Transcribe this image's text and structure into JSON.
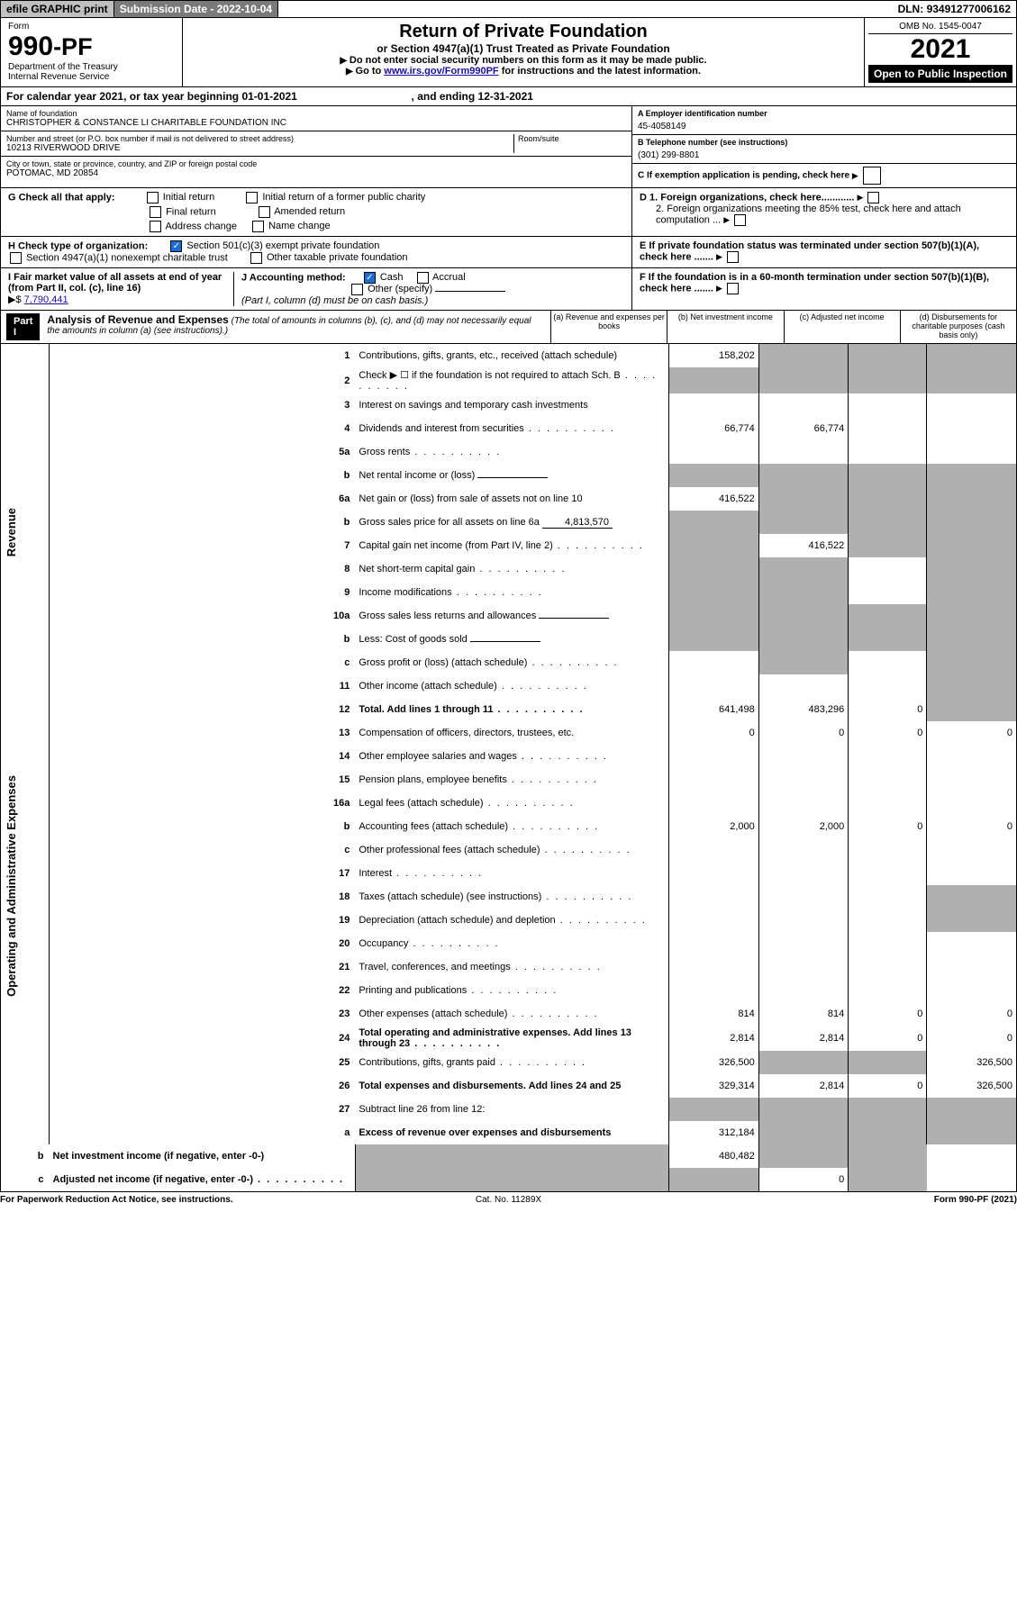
{
  "top": {
    "efile": "efile GRAPHIC print",
    "subdate_lbl": "Submission Date - ",
    "subdate": "2022-10-04",
    "dln_lbl": "DLN: ",
    "dln": "93491277006162"
  },
  "head": {
    "form": "Form",
    "num": "990",
    "pf": "-PF",
    "dept": "Department of the Treasury",
    "irs": "Internal Revenue Service",
    "title": "Return of Private Foundation",
    "sub": "or Section 4947(a)(1) Trust Treated as Private Foundation",
    "arrow1": "Do not enter social security numbers on this form as it may be made public.",
    "arrow2_pre": "Go to ",
    "arrow2_link": "www.irs.gov/Form990PF",
    "arrow2_post": " for instructions and the latest information.",
    "omb": "OMB No. 1545-0047",
    "year": "2021",
    "open": "Open to Public Inspection"
  },
  "cal": {
    "pre": "For calendar year 2021, or tax year beginning ",
    "begin": "01-01-2021",
    "mid": ", and ending ",
    "end": "12-31-2021"
  },
  "name": {
    "lbl": "Name of foundation",
    "val": "CHRISTOPHER & CONSTANCE LI CHARITABLE FOUNDATION INC"
  },
  "addr": {
    "lbl": "Number and street (or P.O. box number if mail is not delivered to street address)",
    "val": "10213 RIVERWOOD DRIVE",
    "room": "Room/suite"
  },
  "city": {
    "lbl": "City or town, state or province, country, and ZIP or foreign postal code",
    "val": "POTOMAC, MD  20854"
  },
  "a": {
    "lbl": "A Employer identification number",
    "val": "45-4058149"
  },
  "b": {
    "lbl": "B Telephone number (see instructions)",
    "val": "(301) 299-8801"
  },
  "c": {
    "lbl": "C If exemption application is pending, check here"
  },
  "d1": "D 1. Foreign organizations, check here............",
  "d2": "2. Foreign organizations meeting the 85% test, check here and attach computation ...",
  "e": "E  If private foundation status was terminated under section 507(b)(1)(A), check here .......",
  "f": "F  If the foundation is in a 60-month termination under section 507(b)(1)(B), check here .......",
  "g": {
    "lbl": "G Check all that apply:",
    "c1": "Initial return",
    "c2": "Final return",
    "c3": "Address change",
    "c4": "Initial return of a former public charity",
    "c5": "Amended return",
    "c6": "Name change"
  },
  "h": {
    "lbl": "H Check type of organization:",
    "c1": "Section 501(c)(3) exempt private foundation",
    "c2": "Section 4947(a)(1) nonexempt charitable trust",
    "c3": "Other taxable private foundation"
  },
  "i": {
    "lbl": "I Fair market value of all assets at end of year (from Part II, col. (c), line 16) ",
    "pre": "▶$",
    "val": "7,790,441"
  },
  "j": {
    "lbl": "J Accounting method:",
    "c1": "Cash",
    "c2": "Accrual",
    "c3": "Other (specify)",
    "note": "(Part I, column (d) must be on cash basis.)"
  },
  "part1": {
    "bar": "Part I",
    "title": "Analysis of Revenue and Expenses",
    "desc": "(The total of amounts in columns (b), (c), and (d) may not necessarily equal the amounts in column (a) (see instructions).)",
    "ca": "(a)  Revenue and expenses per books",
    "cb": "(b)  Net investment income",
    "cc": "(c)  Adjusted net income",
    "cd": "(d)  Disbursements for charitable purposes (cash basis only)"
  },
  "sec": {
    "rev": "Revenue",
    "exp": "Operating and Administrative Expenses"
  },
  "lines": [
    {
      "n": "1",
      "d": "Contributions, gifts, grants, etc., received (attach schedule)",
      "a": "158,202",
      "shade_bcd": true
    },
    {
      "n": "2",
      "d": "Check ▶ ☐ if the foundation is not required to attach Sch. B",
      "dots": true,
      "shade_bcd": true,
      "shade_a": true
    },
    {
      "n": "3",
      "d": "Interest on savings and temporary cash investments"
    },
    {
      "n": "4",
      "d": "Dividends and interest from securities",
      "dots": true,
      "a": "66,774",
      "b": "66,774"
    },
    {
      "n": "5a",
      "d": "Gross rents",
      "dots": true
    },
    {
      "n": "b",
      "d": "Net rental income or (loss)",
      "sub": true,
      "shade_all": true
    },
    {
      "n": "6a",
      "d": "Net gain or (loss) from sale of assets not on line 10",
      "a": "416,522",
      "shade_bcd": true
    },
    {
      "n": "b",
      "d": "Gross sales price for all assets on line 6a",
      "subval": "4,813,570",
      "shade_all": true
    },
    {
      "n": "7",
      "d": "Capital gain net income (from Part IV, line 2)",
      "dots": true,
      "b": "416,522",
      "shade_a": true,
      "shade_cd": true
    },
    {
      "n": "8",
      "d": "Net short-term capital gain",
      "dots": true,
      "shade_ab": true,
      "shade_d": true
    },
    {
      "n": "9",
      "d": "Income modifications",
      "dots": true,
      "shade_ab": true,
      "shade_d": true
    },
    {
      "n": "10a",
      "d": "Gross sales less returns and allowances",
      "sub": true,
      "shade_all": true
    },
    {
      "n": "b",
      "d": "Less: Cost of goods sold",
      "dots": true,
      "sub": true,
      "shade_all": true
    },
    {
      "n": "c",
      "d": "Gross profit or (loss) (attach schedule)",
      "dots": true,
      "shade_bd": true
    },
    {
      "n": "11",
      "d": "Other income (attach schedule)",
      "dots": true,
      "shade_d": true
    },
    {
      "n": "12",
      "d": "Total. Add lines 1 through 11",
      "dots": true,
      "bold": true,
      "a": "641,498",
      "b": "483,296",
      "c": "0",
      "shade_d": true
    },
    {
      "n": "13",
      "d": "Compensation of officers, directors, trustees, etc.",
      "a": "0",
      "b": "0",
      "c": "0",
      "dv": "0"
    },
    {
      "n": "14",
      "d": "Other employee salaries and wages",
      "dots": true
    },
    {
      "n": "15",
      "d": "Pension plans, employee benefits",
      "dots": true
    },
    {
      "n": "16a",
      "d": "Legal fees (attach schedule)",
      "dots": true
    },
    {
      "n": "b",
      "d": "Accounting fees (attach schedule)",
      "dots": true,
      "a": "2,000",
      "b": "2,000",
      "c": "0",
      "dv": "0"
    },
    {
      "n": "c",
      "d": "Other professional fees (attach schedule)",
      "dots": true
    },
    {
      "n": "17",
      "d": "Interest",
      "dots": true
    },
    {
      "n": "18",
      "d": "Taxes (attach schedule) (see instructions)",
      "dots": true,
      "shade_d": true
    },
    {
      "n": "19",
      "d": "Depreciation (attach schedule) and depletion",
      "dots": true,
      "shade_d": true
    },
    {
      "n": "20",
      "d": "Occupancy",
      "dots": true
    },
    {
      "n": "21",
      "d": "Travel, conferences, and meetings",
      "dots": true
    },
    {
      "n": "22",
      "d": "Printing and publications",
      "dots": true
    },
    {
      "n": "23",
      "d": "Other expenses (attach schedule)",
      "dots": true,
      "a": "814",
      "b": "814",
      "c": "0",
      "dv": "0"
    },
    {
      "n": "24",
      "d": "Total operating and administrative expenses. Add lines 13 through 23",
      "dots": true,
      "bold": true,
      "a": "2,814",
      "b": "2,814",
      "c": "0",
      "dv": "0"
    },
    {
      "n": "25",
      "d": "Contributions, gifts, grants paid",
      "dots": true,
      "a": "326,500",
      "shade_bc": true,
      "dv": "326,500"
    },
    {
      "n": "26",
      "d": "Total expenses and disbursements. Add lines 24 and 25",
      "bold": true,
      "a": "329,314",
      "b": "2,814",
      "c": "0",
      "dv": "326,500"
    },
    {
      "n": "27",
      "d": "Subtract line 26 from line 12:",
      "shade_all": true
    },
    {
      "n": "a",
      "d": "Excess of revenue over expenses and disbursements",
      "bold": true,
      "a": "312,184",
      "shade_bcd": true
    },
    {
      "n": "b",
      "d": "Net investment income (if negative, enter -0-)",
      "bold": true,
      "b": "480,482",
      "shade_a": true,
      "shade_cd": true
    },
    {
      "n": "c",
      "d": "Adjusted net income (if negative, enter -0-)",
      "dots": true,
      "bold": true,
      "c": "0",
      "shade_ab": true,
      "shade_d": true
    }
  ],
  "foot": {
    "l": "For Paperwork Reduction Act Notice, see instructions.",
    "c": "Cat. No. 11289X",
    "r": "Form 990-PF (2021)"
  }
}
